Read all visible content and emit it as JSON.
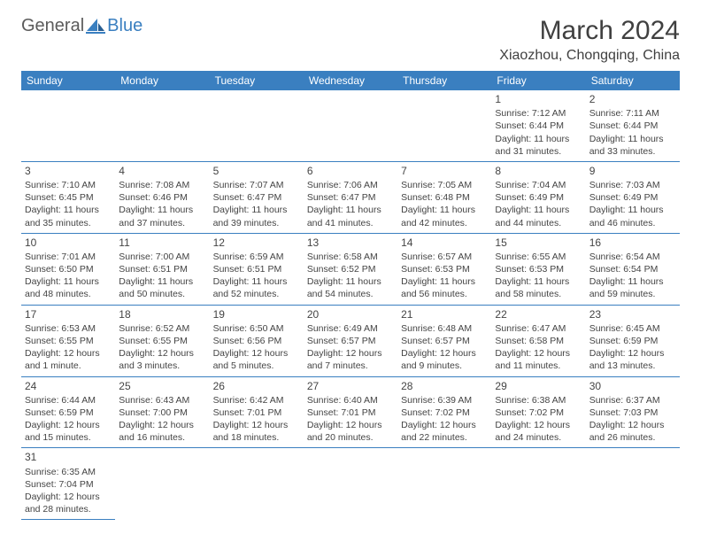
{
  "brand": {
    "part1": "General",
    "part2": "Blue"
  },
  "title": "March 2024",
  "location": "Xiaozhou, Chongqing, China",
  "colors": {
    "header_bg": "#3a7fc0",
    "header_fg": "#ffffff",
    "border": "#3a7fc0",
    "text": "#444444"
  },
  "weekdays": [
    "Sunday",
    "Monday",
    "Tuesday",
    "Wednesday",
    "Thursday",
    "Friday",
    "Saturday"
  ],
  "first_weekday_index": 5,
  "days": [
    {
      "n": 1,
      "sunrise": "7:12 AM",
      "sunset": "6:44 PM",
      "daylight": "11 hours and 31 minutes."
    },
    {
      "n": 2,
      "sunrise": "7:11 AM",
      "sunset": "6:44 PM",
      "daylight": "11 hours and 33 minutes."
    },
    {
      "n": 3,
      "sunrise": "7:10 AM",
      "sunset": "6:45 PM",
      "daylight": "11 hours and 35 minutes."
    },
    {
      "n": 4,
      "sunrise": "7:08 AM",
      "sunset": "6:46 PM",
      "daylight": "11 hours and 37 minutes."
    },
    {
      "n": 5,
      "sunrise": "7:07 AM",
      "sunset": "6:47 PM",
      "daylight": "11 hours and 39 minutes."
    },
    {
      "n": 6,
      "sunrise": "7:06 AM",
      "sunset": "6:47 PM",
      "daylight": "11 hours and 41 minutes."
    },
    {
      "n": 7,
      "sunrise": "7:05 AM",
      "sunset": "6:48 PM",
      "daylight": "11 hours and 42 minutes."
    },
    {
      "n": 8,
      "sunrise": "7:04 AM",
      "sunset": "6:49 PM",
      "daylight": "11 hours and 44 minutes."
    },
    {
      "n": 9,
      "sunrise": "7:03 AM",
      "sunset": "6:49 PM",
      "daylight": "11 hours and 46 minutes."
    },
    {
      "n": 10,
      "sunrise": "7:01 AM",
      "sunset": "6:50 PM",
      "daylight": "11 hours and 48 minutes."
    },
    {
      "n": 11,
      "sunrise": "7:00 AM",
      "sunset": "6:51 PM",
      "daylight": "11 hours and 50 minutes."
    },
    {
      "n": 12,
      "sunrise": "6:59 AM",
      "sunset": "6:51 PM",
      "daylight": "11 hours and 52 minutes."
    },
    {
      "n": 13,
      "sunrise": "6:58 AM",
      "sunset": "6:52 PM",
      "daylight": "11 hours and 54 minutes."
    },
    {
      "n": 14,
      "sunrise": "6:57 AM",
      "sunset": "6:53 PM",
      "daylight": "11 hours and 56 minutes."
    },
    {
      "n": 15,
      "sunrise": "6:55 AM",
      "sunset": "6:53 PM",
      "daylight": "11 hours and 58 minutes."
    },
    {
      "n": 16,
      "sunrise": "6:54 AM",
      "sunset": "6:54 PM",
      "daylight": "11 hours and 59 minutes."
    },
    {
      "n": 17,
      "sunrise": "6:53 AM",
      "sunset": "6:55 PM",
      "daylight": "12 hours and 1 minute."
    },
    {
      "n": 18,
      "sunrise": "6:52 AM",
      "sunset": "6:55 PM",
      "daylight": "12 hours and 3 minutes."
    },
    {
      "n": 19,
      "sunrise": "6:50 AM",
      "sunset": "6:56 PM",
      "daylight": "12 hours and 5 minutes."
    },
    {
      "n": 20,
      "sunrise": "6:49 AM",
      "sunset": "6:57 PM",
      "daylight": "12 hours and 7 minutes."
    },
    {
      "n": 21,
      "sunrise": "6:48 AM",
      "sunset": "6:57 PM",
      "daylight": "12 hours and 9 minutes."
    },
    {
      "n": 22,
      "sunrise": "6:47 AM",
      "sunset": "6:58 PM",
      "daylight": "12 hours and 11 minutes."
    },
    {
      "n": 23,
      "sunrise": "6:45 AM",
      "sunset": "6:59 PM",
      "daylight": "12 hours and 13 minutes."
    },
    {
      "n": 24,
      "sunrise": "6:44 AM",
      "sunset": "6:59 PM",
      "daylight": "12 hours and 15 minutes."
    },
    {
      "n": 25,
      "sunrise": "6:43 AM",
      "sunset": "7:00 PM",
      "daylight": "12 hours and 16 minutes."
    },
    {
      "n": 26,
      "sunrise": "6:42 AM",
      "sunset": "7:01 PM",
      "daylight": "12 hours and 18 minutes."
    },
    {
      "n": 27,
      "sunrise": "6:40 AM",
      "sunset": "7:01 PM",
      "daylight": "12 hours and 20 minutes."
    },
    {
      "n": 28,
      "sunrise": "6:39 AM",
      "sunset": "7:02 PM",
      "daylight": "12 hours and 22 minutes."
    },
    {
      "n": 29,
      "sunrise": "6:38 AM",
      "sunset": "7:02 PM",
      "daylight": "12 hours and 24 minutes."
    },
    {
      "n": 30,
      "sunrise": "6:37 AM",
      "sunset": "7:03 PM",
      "daylight": "12 hours and 26 minutes."
    },
    {
      "n": 31,
      "sunrise": "6:35 AM",
      "sunset": "7:04 PM",
      "daylight": "12 hours and 28 minutes."
    }
  ],
  "labels": {
    "sunrise": "Sunrise:",
    "sunset": "Sunset:",
    "daylight": "Daylight:"
  }
}
